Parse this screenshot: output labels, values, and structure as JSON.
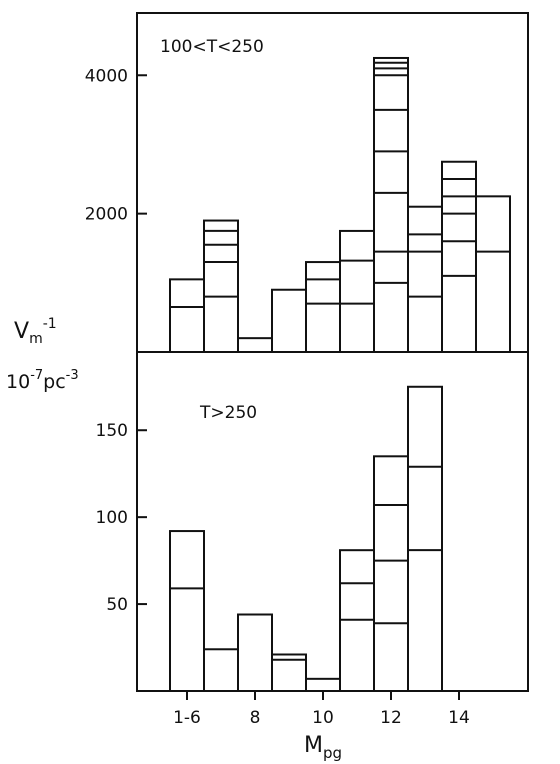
{
  "chart_data": [
    {
      "type": "bar",
      "subtype": "stacked-histogram",
      "panel_label": "100<T<250",
      "x_axis": "shared",
      "yticks": [
        2000,
        4000
      ],
      "ylim": [
        0,
        4900
      ],
      "bars": [
        {
          "bin": 1,
          "boundaries": [
            650,
            1050
          ]
        },
        {
          "bin": 2,
          "boundaries": [
            800,
            1300,
            1550,
            1750,
            1900
          ]
        },
        {
          "bin": 3,
          "boundaries": [
            200
          ]
        },
        {
          "bin": 4,
          "boundaries": [
            900
          ]
        },
        {
          "bin": 5,
          "boundaries": [
            700,
            1050,
            1300
          ]
        },
        {
          "bin": 6,
          "boundaries": [
            700,
            1320,
            1750
          ]
        },
        {
          "bin": 7,
          "boundaries": [
            1000,
            1450,
            2300,
            2900,
            3500,
            4000,
            4100,
            4180,
            4250
          ]
        },
        {
          "bin": 8,
          "boundaries": [
            800,
            1450,
            1700,
            2100
          ]
        },
        {
          "bin": 9,
          "boundaries": [
            1100,
            1600,
            2000,
            2250,
            2500,
            2750
          ]
        },
        {
          "bin": 10,
          "boundaries": [
            1450,
            2250
          ]
        }
      ]
    },
    {
      "type": "bar",
      "subtype": "stacked-histogram",
      "panel_label": "T>250",
      "yticks": [
        50,
        100,
        150
      ],
      "ylim": [
        0,
        195
      ],
      "xlabel": "M",
      "xlabel_sub": "pg",
      "xticks": [
        {
          "label": "1-6",
          "bin": 1
        },
        {
          "label": "8",
          "bin": 3
        },
        {
          "label": "10",
          "bin": 5
        },
        {
          "label": "12",
          "bin": 7
        },
        {
          "label": "14",
          "bin": 9
        }
      ],
      "bars": [
        {
          "bin": 1,
          "boundaries": [
            59,
            92
          ]
        },
        {
          "bin": 2,
          "boundaries": [
            24
          ]
        },
        {
          "bin": 3,
          "boundaries": [
            44
          ]
        },
        {
          "bin": 4,
          "boundaries": [
            18,
            21
          ]
        },
        {
          "bin": 5,
          "boundaries": [
            7
          ]
        },
        {
          "bin": 6,
          "boundaries": [
            41,
            62,
            81
          ]
        },
        {
          "bin": 7,
          "boundaries": [
            39,
            75,
            107,
            135
          ]
        },
        {
          "bin": 8,
          "boundaries": [
            81,
            129,
            175
          ]
        }
      ]
    }
  ],
  "ylabel": {
    "line1": "V",
    "line1_sub": "m",
    "line1_sup": "-1",
    "line2_a": "10",
    "line2_sup_a": "-7",
    "line2_b": "pc",
    "line2_sup_b": "-3"
  }
}
